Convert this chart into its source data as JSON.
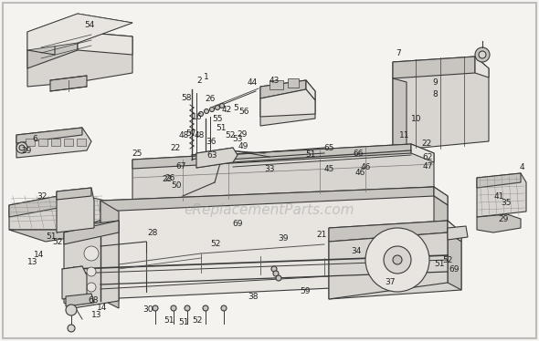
{
  "background_color": "#f5f3ef",
  "border_color": "#bbbbbb",
  "watermark": "eReplacementParts.com",
  "watermark_color": "#999999",
  "watermark_alpha": 0.45,
  "watermark_fontsize": 11,
  "line_color": "#3a3a3a",
  "fill_light": "#e8e5e0",
  "fill_mid": "#d8d5d0",
  "fill_dark": "#c8c5c0",
  "fig_width": 5.9,
  "fig_height": 3.74,
  "dpi": 100
}
